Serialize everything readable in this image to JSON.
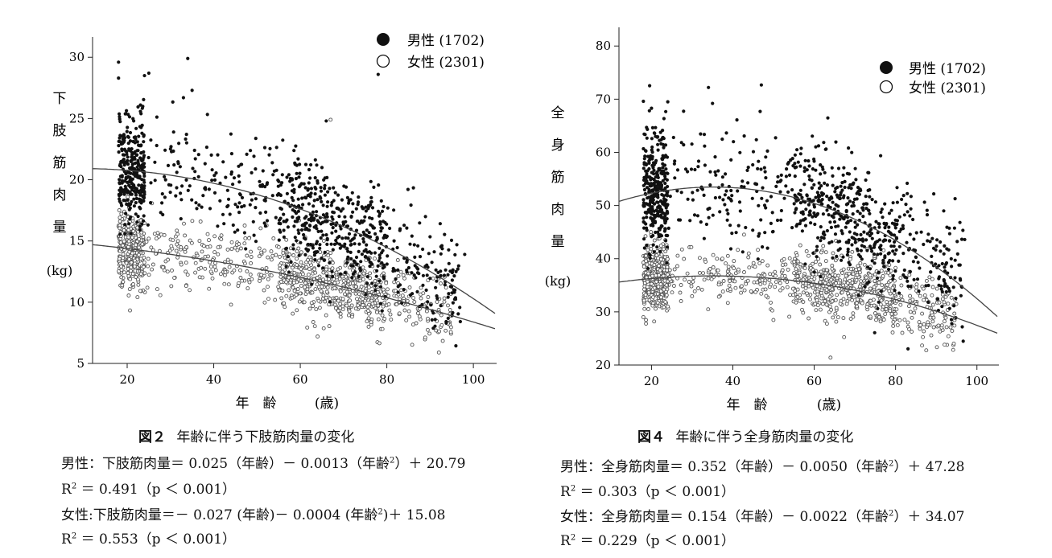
{
  "chart_data": [
    {
      "type": "scatter",
      "figure_number": "図２",
      "title": "年齢に伴う下肢筋肉量の変化",
      "ylabel": "下肢筋肉量",
      "yunit": "(kg)",
      "xlabel": "年　齢",
      "xunit": "(歳)",
      "xlim": [
        12,
        105
      ],
      "ylim": [
        5,
        31
      ],
      "xticks": [
        20,
        40,
        60,
        80,
        100
      ],
      "yticks": [
        5,
        10,
        15,
        20,
        25,
        30
      ],
      "legend_position": "top-right",
      "series": [
        {
          "name": "男性",
          "count": "(1702)",
          "marker": "filled",
          "color": "#111111",
          "age_range": [
            18,
            97
          ],
          "coefficients": {
            "age": 0.025,
            "age_sq": -0.0013,
            "intercept": 20.79
          },
          "spread": 2.2,
          "upper_outliers": [
            [
              18,
              29.6
            ],
            [
              18,
              28.3
            ],
            [
              24,
              28.5
            ],
            [
              25,
              28.7
            ],
            [
              33,
              26.7
            ],
            [
              34,
              29.9
            ],
            [
              35,
              27.3
            ],
            [
              66,
              24.8
            ],
            [
              78,
              28.6
            ],
            [
              96,
              12.5
            ],
            [
              98,
              13.9
            ]
          ]
        },
        {
          "name": "女性",
          "count": "(2301)",
          "marker": "open",
          "color": "#555555",
          "age_range": [
            18,
            95
          ],
          "coefficients": {
            "age": -0.027,
            "age_sq": -0.0004,
            "intercept": 15.08
          },
          "spread": 1.4,
          "upper_outliers": [
            [
              64,
              7.2
            ],
            [
              44,
              9.8
            ],
            [
              67,
              24.9
            ]
          ]
        }
      ],
      "equations": [
        {
          "text": "男性：下肢筋肉量＝ 0.025（年齢）－ 0.0013（年齢",
          "sup": "2",
          "tail": "）＋ 20.79"
        },
        {
          "r_label": "R",
          "sup": "2",
          "tail": " ＝ 0.491（p ＜ 0.001）"
        },
        {
          "text": "女性:下肢筋肉量＝－ 0.027 (年齢)－ 0.0004 (年齢",
          "sup": "2",
          "tail": ")＋ 15.08"
        },
        {
          "r_label": "R",
          "sup": "2",
          "tail": " ＝ 0.553（p ＜ 0.001）"
        }
      ]
    },
    {
      "type": "scatter",
      "figure_number": "図４",
      "title": "年齢に伴う全身筋肉量の変化",
      "ylabel": "全身筋肉量",
      "yunit": "(kg)",
      "xlabel": "年　齢",
      "xunit": "(歳)",
      "xlim": [
        12,
        105
      ],
      "ylim": [
        20,
        82
      ],
      "xticks": [
        20,
        40,
        60,
        80,
        100
      ],
      "yticks": [
        20,
        30,
        40,
        50,
        60,
        70,
        80
      ],
      "legend_position": "top-right",
      "series": [
        {
          "name": "男性",
          "count": "(1702)",
          "marker": "filled",
          "color": "#111111",
          "age_range": [
            18,
            97
          ],
          "coefficients": {
            "age": 0.352,
            "age_sq": -0.005,
            "intercept": 47.28
          },
          "spread": 5.5,
          "upper_outliers": [
            [
              18,
              69.6
            ],
            [
              20,
              68.3
            ],
            [
              24,
              69.5
            ],
            [
              34,
              72.2
            ],
            [
              35,
              69.2
            ],
            [
              41,
              66.1
            ],
            [
              92,
              42.4
            ],
            [
              97,
              43.6
            ]
          ]
        },
        {
          "name": "女性",
          "count": "(2301)",
          "marker": "open",
          "color": "#555555",
          "age_range": [
            18,
            95
          ],
          "coefficients": {
            "age": 0.154,
            "age_sq": -0.0022,
            "intercept": 34.07
          },
          "spread": 3.2,
          "upper_outliers": [
            [
              64,
              21.4
            ],
            [
              18,
              29.0
            ],
            [
              86,
              26.8
            ]
          ]
        }
      ],
      "equations": [
        {
          "text": "男性：全身筋肉量＝ 0.352（年齢）－ 0.0050（年齢",
          "sup": "2",
          "tail": "）＋ 47.28"
        },
        {
          "r_label": "R",
          "sup": "2",
          "tail": " ＝ 0.303（p ＜ 0.001）"
        },
        {
          "text": "女性：全身筋肉量＝ 0.154（年齢）－ 0.0022（年齢",
          "sup": "2",
          "tail": "）＋ 34.07"
        },
        {
          "r_label": "R",
          "sup": "2",
          "tail": " ＝ 0.229（p ＜ 0.001）"
        }
      ]
    }
  ]
}
